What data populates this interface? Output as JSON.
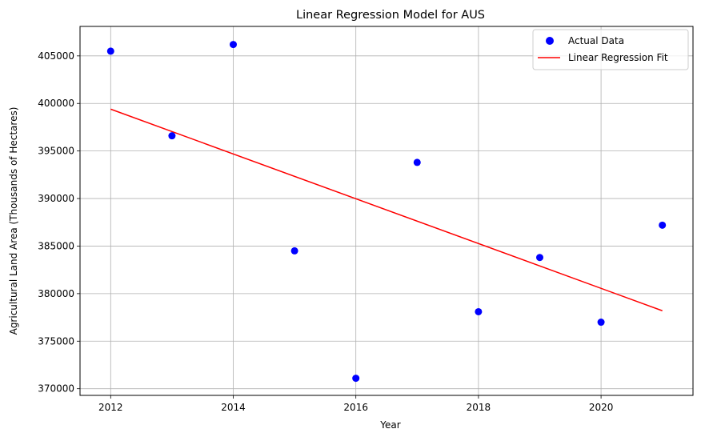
{
  "chart_data": {
    "type": "scatter",
    "title": "Linear Regression Model for AUS",
    "xlabel": "Year",
    "ylabel": "Agricultural Land Area (Thousands of Hectares)",
    "xlim": [
      2011.5,
      2021.5
    ],
    "ylim": [
      369300,
      408100
    ],
    "grid": true,
    "legend_position": "top-right",
    "x_ticks": [
      2012,
      2014,
      2016,
      2018,
      2020
    ],
    "x_tick_labels": [
      "2012",
      "2014",
      "2016",
      "2018",
      "2020"
    ],
    "y_ticks": [
      370000,
      375000,
      380000,
      385000,
      390000,
      395000,
      400000,
      405000
    ],
    "y_tick_labels": [
      "370000",
      "375000",
      "380000",
      "385000",
      "390000",
      "395000",
      "400000",
      "405000"
    ],
    "series": [
      {
        "name": "Actual Data",
        "kind": "scatter",
        "color": "#0000ff",
        "x": [
          2012,
          2013,
          2014,
          2015,
          2016,
          2017,
          2018,
          2019,
          2020,
          2021
        ],
        "y": [
          405500,
          396600,
          406200,
          384500,
          371100,
          393800,
          378100,
          383800,
          377000,
          387200
        ]
      },
      {
        "name": "Linear Regression Fit",
        "kind": "line",
        "color": "#ff0000",
        "x": [
          2012,
          2021
        ],
        "y": [
          399400,
          378200
        ]
      }
    ]
  }
}
